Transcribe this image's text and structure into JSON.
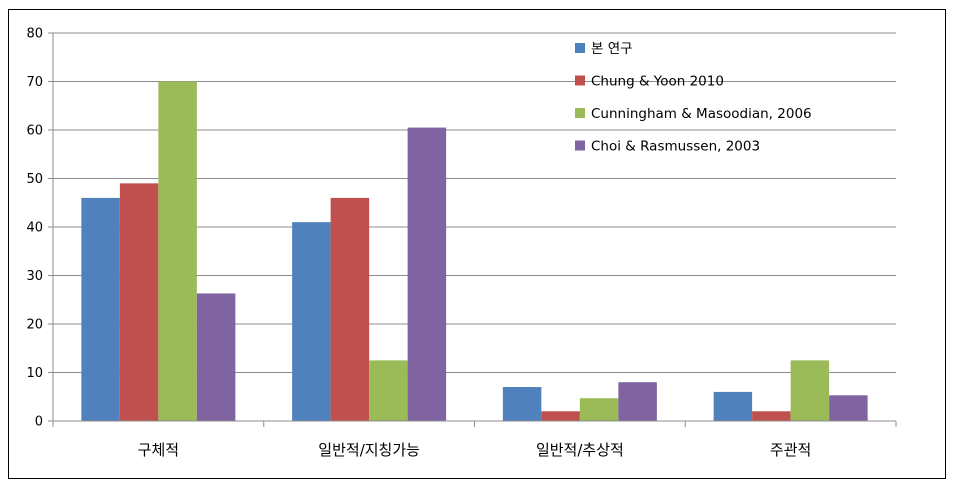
{
  "chart_data": {
    "type": "bar",
    "categories": [
      "구체적",
      "일반적/지칭가능",
      "일반적/추상적",
      "주관적"
    ],
    "series": [
      {
        "name": "본 연구",
        "color": "#4F81BD",
        "values": [
          46,
          41,
          7,
          6
        ]
      },
      {
        "name": "Chung & Yoon 2010",
        "color": "#C0504D",
        "values": [
          49,
          46,
          2,
          2
        ]
      },
      {
        "name": "Cunningham & Masoodian, 2006",
        "color": "#9BBB59",
        "values": [
          70,
          12.5,
          4.7,
          12.5
        ]
      },
      {
        "name": "Choi & Rasmussen, 2003",
        "color": "#8064A2",
        "values": [
          26.3,
          60.5,
          8,
          5.3
        ]
      }
    ],
    "ylim": [
      0,
      80
    ],
    "yticks": [
      0,
      10,
      20,
      30,
      40,
      50,
      60,
      70,
      80
    ],
    "ytick_labels": [
      "0",
      "10",
      "20",
      "30",
      "40",
      "50",
      "60",
      "70",
      "80"
    ],
    "grid": true,
    "legend_position": "top-right",
    "title": "",
    "xlabel": "",
    "ylabel": ""
  }
}
